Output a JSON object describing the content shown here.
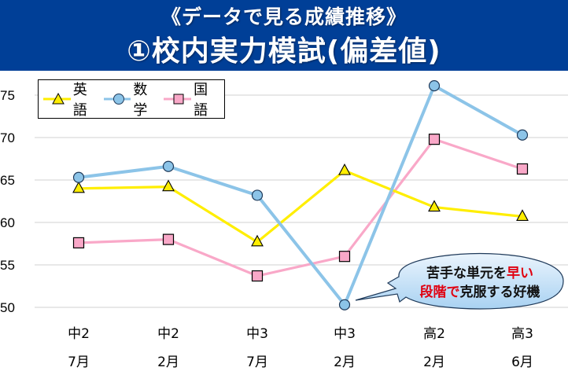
{
  "banner": {
    "subtitle": "《データで見る成績推移》",
    "title": "①校内実力模試(偏差値)"
  },
  "legend": [
    {
      "label": "英語",
      "marker": "triangle",
      "color": "#ffee00"
    },
    {
      "label": "数学",
      "marker": "circle",
      "color": "#8cc4e8"
    },
    {
      "label": "国語",
      "marker": "square",
      "color": "#f9a8c8"
    }
  ],
  "callout": {
    "line1_black": "苦手な単元を",
    "line1_red": "早い",
    "line2_red": "段階で",
    "line2_black": "克服する好機"
  },
  "chart_data": {
    "type": "line",
    "title": "①校内実力模試(偏差値)",
    "subtitle": "《データで見る成績推移》",
    "xlabel": "",
    "ylabel": "",
    "categories": [
      "中2 7月",
      "中2 2月",
      "中3 7月",
      "中3 2月",
      "高2 2月",
      "高3 6月"
    ],
    "category_lines": [
      [
        "中2",
        "7月"
      ],
      [
        "中2",
        "2月"
      ],
      [
        "中3",
        "7月"
      ],
      [
        "中3",
        "2月"
      ],
      [
        "高2",
        "2月"
      ],
      [
        "高3",
        "6月"
      ]
    ],
    "yticks": [
      50,
      55,
      60,
      65,
      70,
      75
    ],
    "ylim": [
      50,
      76
    ],
    "grid": true,
    "legend_position": "top-left",
    "series": [
      {
        "name": "英語",
        "color": "#ffee00",
        "marker": "triangle",
        "values": [
          64.0,
          64.2,
          57.7,
          66.1,
          61.8,
          60.7
        ]
      },
      {
        "name": "数学",
        "color": "#8cc4e8",
        "marker": "circle",
        "values": [
          65.3,
          66.6,
          63.2,
          50.3,
          76.1,
          70.3
        ]
      },
      {
        "name": "国語",
        "color": "#f9a8c8",
        "marker": "square",
        "values": [
          57.6,
          58.0,
          53.7,
          56.0,
          69.8,
          66.3
        ]
      }
    ],
    "annotations": [
      {
        "text": "苦手な単元を早い段階で克服する好機",
        "points_to": "数学 中3 2月"
      }
    ]
  }
}
